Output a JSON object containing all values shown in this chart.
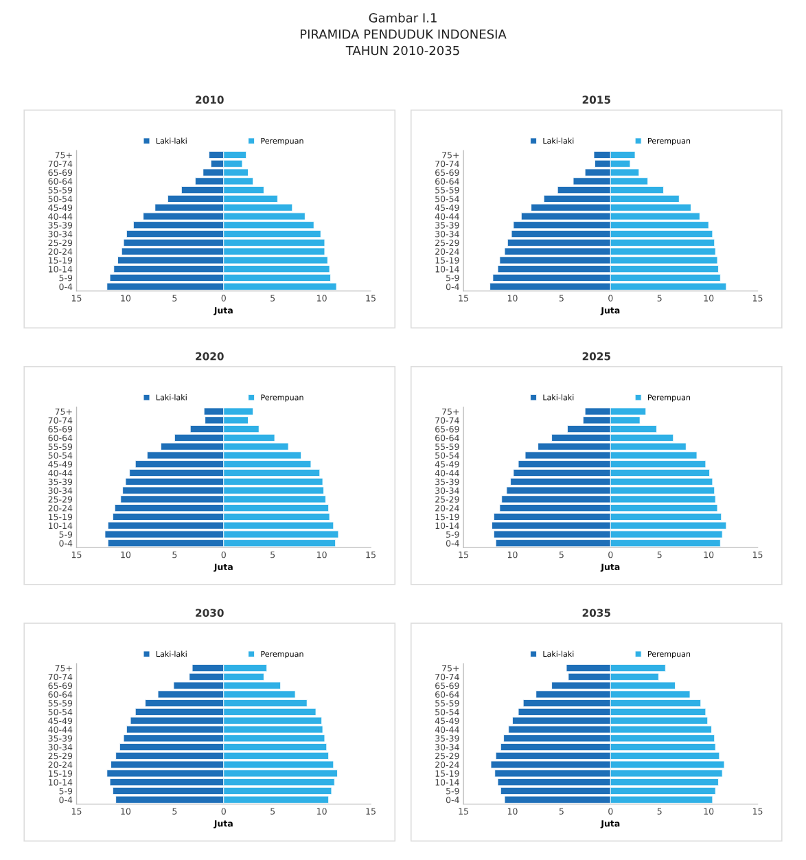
{
  "chart_data": [
    {
      "type": "bar",
      "orientation": "horizontal",
      "stacked": true,
      "title": "2010",
      "xlabel": "Juta",
      "legend": "top",
      "annotations": [
        "Gambar I.1",
        "PIRAMIDA PENDUDUK INDONESIA",
        "TAHUN 2010-2035"
      ],
      "categories": [
        "75+",
        "70-74",
        "65-69",
        "60-64",
        "55-59",
        "50-54",
        "45-49",
        "40-44",
        "35-39",
        "30-34",
        "25-29",
        "20-24",
        "15-19",
        "10-14",
        "5-9",
        "0-4"
      ],
      "xlim": [
        -15,
        15
      ],
      "xticks": [
        {
          "value": -15,
          "label": "15"
        },
        {
          "value": -10,
          "label": "10"
        },
        {
          "value": -5,
          "label": "5"
        },
        0,
        5,
        10,
        15
      ],
      "series": [
        {
          "name": "Laki-laki",
          "color": "#1e6fb8",
          "values": [
            -1.5,
            -1.3,
            -2.1,
            -2.9,
            -4.3,
            -5.7,
            -7.0,
            -8.2,
            -9.2,
            -9.9,
            -10.2,
            -10.4,
            -10.8,
            -11.2,
            -11.6,
            -11.9
          ]
        },
        {
          "name": "Perempuan",
          "color": "#2fb0e6",
          "values": [
            2.3,
            1.9,
            2.5,
            3.0,
            4.1,
            5.5,
            7.0,
            8.3,
            9.2,
            9.9,
            10.3,
            10.3,
            10.6,
            10.8,
            10.9,
            11.5
          ]
        }
      ]
    },
    {
      "type": "bar",
      "orientation": "horizontal",
      "stacked": true,
      "title": "2015",
      "xlabel": "Juta",
      "legend": "top",
      "categories": [
        "75+",
        "70-74",
        "65-69",
        "60-64",
        "55-59",
        "50-54",
        "45-49",
        "40-44",
        "35-39",
        "30-34",
        "25-29",
        "20-24",
        "15-19",
        "10-14",
        "5-9",
        "0-4"
      ],
      "xlim": [
        -15,
        15
      ],
      "xticks": [
        {
          "value": -15,
          "label": "15"
        },
        {
          "value": -10,
          "label": "10"
        },
        {
          "value": -5,
          "label": "5"
        },
        0,
        5,
        10,
        15
      ],
      "series": [
        {
          "name": "Laki-laki",
          "color": "#1e6fb8",
          "values": [
            -1.7,
            -1.6,
            -2.6,
            -3.8,
            -5.4,
            -6.8,
            -8.1,
            -9.1,
            -9.9,
            -10.1,
            -10.5,
            -10.8,
            -11.3,
            -11.5,
            -12.0,
            -12.3
          ]
        },
        {
          "name": "Perempuan",
          "color": "#2fb0e6",
          "values": [
            2.5,
            2.0,
            2.9,
            3.8,
            5.4,
            7.0,
            8.2,
            9.1,
            10.0,
            10.4,
            10.6,
            10.7,
            10.9,
            11.0,
            11.2,
            11.8
          ]
        }
      ]
    },
    {
      "type": "bar",
      "orientation": "horizontal",
      "stacked": true,
      "title": "2020",
      "xlabel": "Juta",
      "legend": "top",
      "categories": [
        "75+",
        "70-74",
        "65-69",
        "60-64",
        "55-59",
        "50-54",
        "45-49",
        "40-44",
        "35-39",
        "30-34",
        "25-29",
        "20-24",
        "15-19",
        "10-14",
        "5-9",
        "0-4"
      ],
      "xlim": [
        -15,
        15
      ],
      "xticks": [
        {
          "value": -15,
          "label": "15"
        },
        {
          "value": -10,
          "label": "10"
        },
        {
          "value": -5,
          "label": "5"
        },
        0,
        5,
        10,
        15
      ],
      "series": [
        {
          "name": "Laki-laki",
          "color": "#1e6fb8",
          "values": [
            -2.0,
            -1.9,
            -3.4,
            -5.0,
            -6.4,
            -7.8,
            -9.0,
            -9.6,
            -10.0,
            -10.3,
            -10.5,
            -11.1,
            -11.3,
            -11.8,
            -12.1,
            -11.8
          ]
        },
        {
          "name": "Perempuan",
          "color": "#2fb0e6",
          "values": [
            3.0,
            2.5,
            3.6,
            5.2,
            6.6,
            7.9,
            8.9,
            9.8,
            10.1,
            10.2,
            10.4,
            10.7,
            10.8,
            11.2,
            11.7,
            11.4
          ]
        }
      ]
    },
    {
      "type": "bar",
      "orientation": "horizontal",
      "stacked": true,
      "title": "2025",
      "xlabel": "Juta",
      "legend": "top",
      "categories": [
        "75+",
        "70-74",
        "65-69",
        "60-64",
        "55-59",
        "50-54",
        "45-49",
        "40-44",
        "35-39",
        "30-34",
        "25-29",
        "20-24",
        "15-19",
        "10-14",
        "5-9",
        "0-4"
      ],
      "xlim": [
        -15,
        15
      ],
      "xticks": [
        {
          "value": -15,
          "label": "15"
        },
        {
          "value": -10,
          "label": "10"
        },
        {
          "value": -5,
          "label": "5"
        },
        0,
        5,
        10,
        15
      ],
      "series": [
        {
          "name": "Laki-laki",
          "color": "#1e6fb8",
          "values": [
            -2.6,
            -2.8,
            -4.4,
            -6.0,
            -7.4,
            -8.7,
            -9.4,
            -9.9,
            -10.2,
            -10.6,
            -11.1,
            -11.3,
            -11.9,
            -12.1,
            -11.9,
            -11.7
          ]
        },
        {
          "name": "Perempuan",
          "color": "#2fb0e6",
          "values": [
            3.6,
            3.0,
            4.7,
            6.4,
            7.7,
            8.8,
            9.7,
            10.1,
            10.4,
            10.6,
            10.7,
            10.9,
            11.3,
            11.8,
            11.4,
            11.2
          ]
        }
      ]
    },
    {
      "type": "bar",
      "orientation": "horizontal",
      "stacked": true,
      "title": "2030",
      "xlabel": "Juta",
      "legend": "top",
      "categories": [
        "75+",
        "70-74",
        "65-69",
        "60-64",
        "55-59",
        "50-54",
        "45-49",
        "40-44",
        "35-39",
        "30-34",
        "25-29",
        "20-24",
        "15-19",
        "10-14",
        "5-9",
        "0-4"
      ],
      "xlim": [
        -15,
        15
      ],
      "xticks": [
        {
          "value": -15,
          "label": "15"
        },
        {
          "value": -10,
          "label": "10"
        },
        {
          "value": -5,
          "label": "5"
        },
        0,
        5,
        10,
        15
      ],
      "series": [
        {
          "name": "Laki-laki",
          "color": "#1e6fb8",
          "values": [
            -3.2,
            -3.5,
            -5.1,
            -6.7,
            -8.0,
            -9.0,
            -9.5,
            -9.9,
            -10.2,
            -10.6,
            -11.0,
            -11.5,
            -11.9,
            -11.6,
            -11.3,
            -11.0
          ]
        },
        {
          "name": "Perempuan",
          "color": "#2fb0e6",
          "values": [
            4.4,
            4.1,
            5.8,
            7.3,
            8.5,
            9.4,
            10.0,
            10.1,
            10.3,
            10.5,
            10.7,
            11.2,
            11.6,
            11.3,
            11.0,
            10.7
          ]
        }
      ]
    },
    {
      "type": "bar",
      "orientation": "horizontal",
      "stacked": true,
      "title": "2035",
      "xlabel": "Juta",
      "legend": "top",
      "categories": [
        "75+",
        "70-74",
        "65-69",
        "60-64",
        "55-59",
        "50-54",
        "45-49",
        "40-44",
        "35-39",
        "30-34",
        "25-29",
        "20-24",
        "15-19",
        "10-14",
        "5-9",
        "0-4"
      ],
      "xlim": [
        -15,
        15
      ],
      "xticks": [
        {
          "value": -15,
          "label": "15"
        },
        {
          "value": -10,
          "label": "10"
        },
        {
          "value": -5,
          "label": "5"
        },
        0,
        5,
        10,
        15
      ],
      "series": [
        {
          "name": "Laki-laki",
          "color": "#1e6fb8",
          "values": [
            -4.5,
            -4.3,
            -6.0,
            -7.6,
            -8.9,
            -9.4,
            -10.0,
            -10.4,
            -10.9,
            -11.2,
            -11.7,
            -12.2,
            -11.8,
            -11.5,
            -11.2,
            -10.8
          ]
        },
        {
          "name": "Perempuan",
          "color": "#2fb0e6",
          "values": [
            5.6,
            4.9,
            6.6,
            8.1,
            9.2,
            9.7,
            9.9,
            10.3,
            10.6,
            10.7,
            11.1,
            11.6,
            11.4,
            11.0,
            10.7,
            10.4
          ]
        }
      ]
    }
  ]
}
